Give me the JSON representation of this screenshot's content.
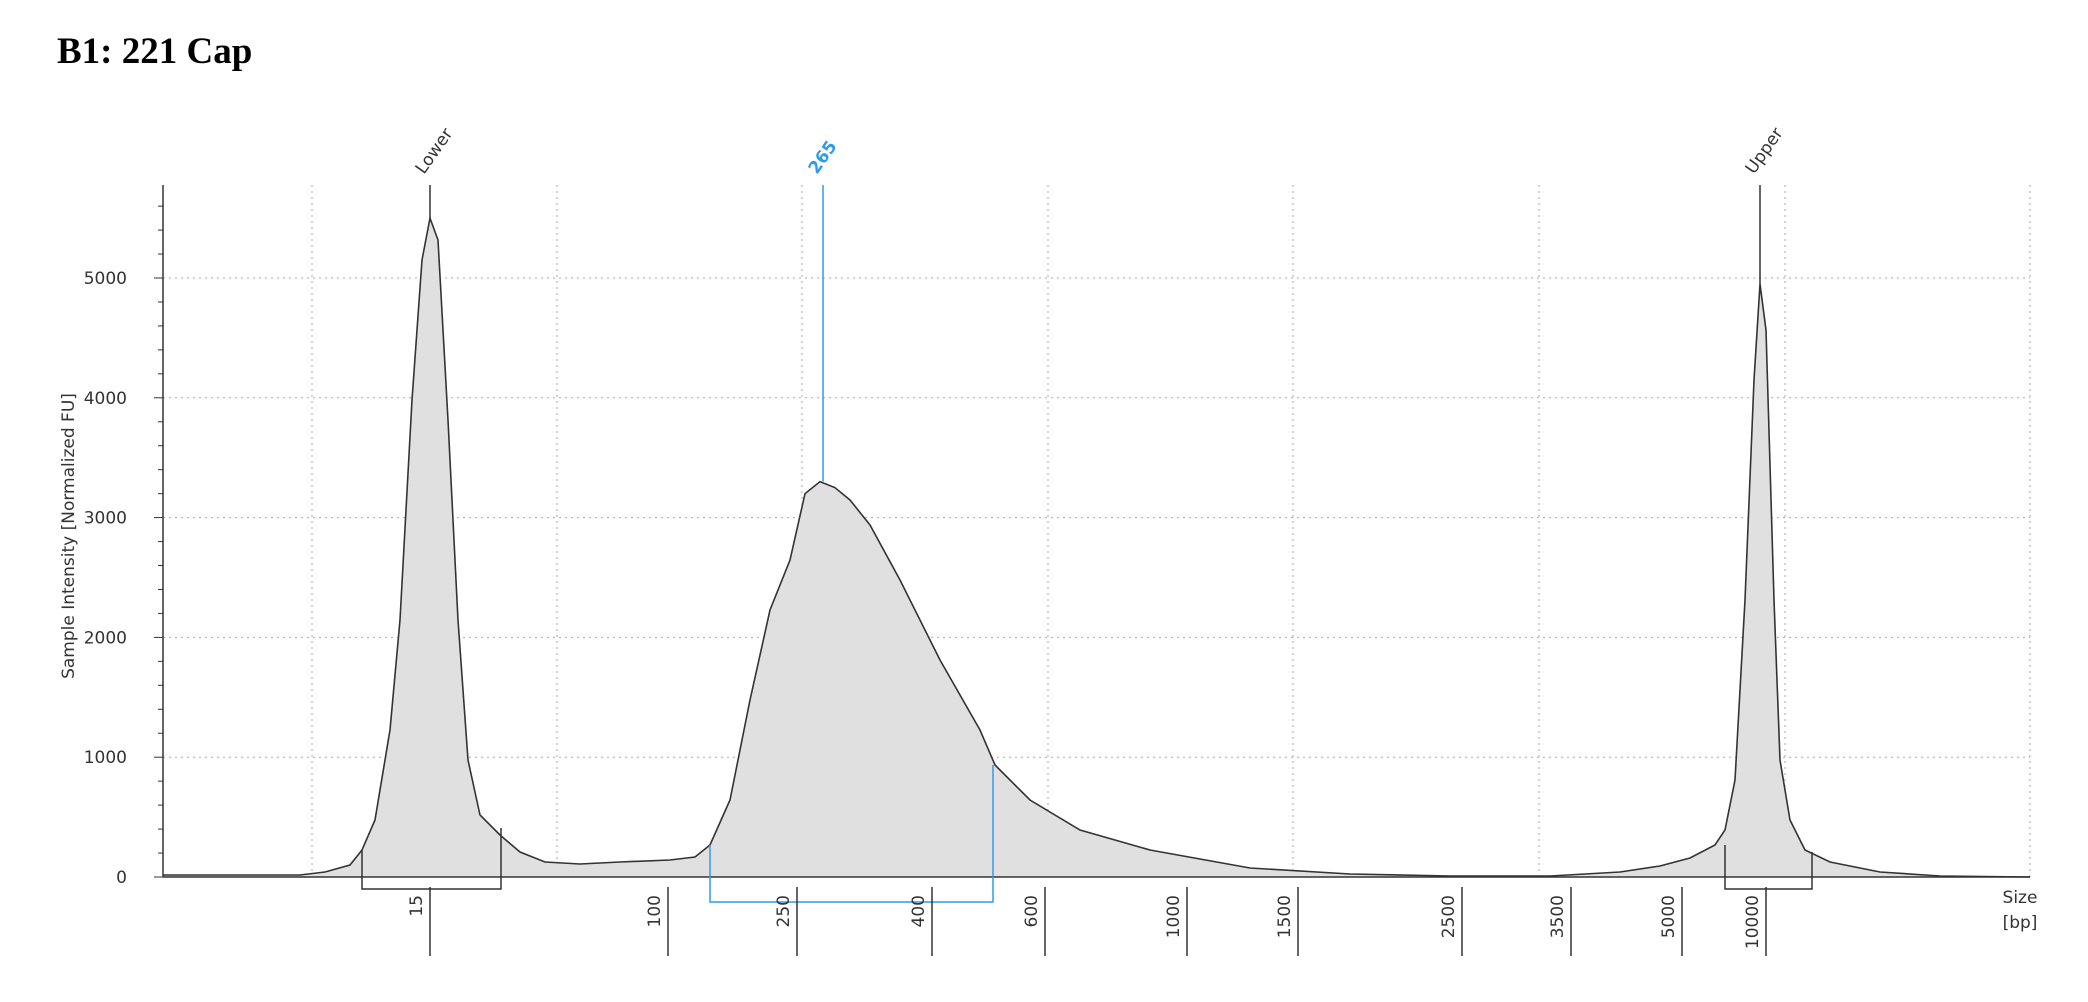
{
  "title": "B1: 221 Cap",
  "chart_data": {
    "type": "area",
    "ylabel": "Sample Intensity [Normalized FU]",
    "xlabel_line1": "Size",
    "xlabel_line2": "[bp]",
    "ylim": [
      0,
      5800
    ],
    "yticks": [
      0,
      1000,
      2000,
      3000,
      4000,
      5000
    ],
    "size_ticks": [
      "15",
      "100",
      "250",
      "400",
      "600",
      "1000",
      "1500",
      "2500",
      "3500",
      "5000",
      "10000"
    ],
    "peaks": [
      {
        "label": "Lower",
        "size": "15",
        "height": 5500,
        "highlight": false
      },
      {
        "label": "265",
        "size": "265",
        "height": 3300,
        "highlight": true
      },
      {
        "label": "Upper",
        "size": "10000",
        "height": 4950,
        "highlight": false
      }
    ],
    "region": {
      "from": "~170",
      "to": "~480"
    },
    "colors": {
      "fill": "#e0e0e0",
      "line": "#333333",
      "highlight": "#2f9bea",
      "grid": "#aaaaaa"
    }
  }
}
